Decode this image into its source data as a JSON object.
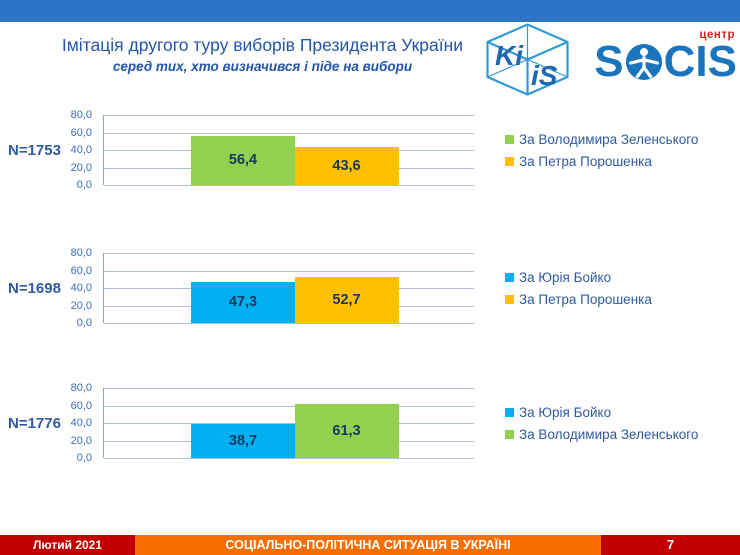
{
  "slide": {
    "title": "Імітація другого туру виборів Президента України",
    "subtitle": "серед тих, хто визначився і піде на вибори"
  },
  "logos": {
    "kiis": {
      "face_left": "Ki",
      "face_right": "iS"
    },
    "socis": {
      "prefix": "S",
      "suffix": "CIS",
      "tag": "центр"
    }
  },
  "colors": {
    "top_bar": "#2E73C5",
    "title_text": "#2356A8",
    "zelensky_green": "#92D050",
    "poroshenko_yellow": "#FFC000",
    "boyko_blue": "#00B0F0",
    "value_text": "#17375E",
    "label_text": "#2E5B9F",
    "gridline": "#AFBEDA",
    "footer_red": "#C00000",
    "footer_orange": "#FA6E00",
    "socis_blue": "#1B75BC",
    "centr_red": "#D92121"
  },
  "chart_data": [
    {
      "type": "bar",
      "n_label": "N=1753",
      "ylim": [
        0,
        80
      ],
      "yticks": [
        "80,0",
        "60,0",
        "40,0",
        "20,0",
        "0,0"
      ],
      "grid": true,
      "legend_position": "right",
      "series": [
        {
          "name": "За Володимира Зеленського",
          "value": 56.4,
          "label": "56,4",
          "color": "#92D050"
        },
        {
          "name": "За Петра Порошенка",
          "value": 43.6,
          "label": "43,6",
          "color": "#FFC000"
        }
      ]
    },
    {
      "type": "bar",
      "n_label": "N=1698",
      "ylim": [
        0,
        80
      ],
      "yticks": [
        "80,0",
        "60,0",
        "40,0",
        "20,0",
        "0,0"
      ],
      "grid": true,
      "legend_position": "right",
      "series": [
        {
          "name": "За Юрія Бойко",
          "value": 47.3,
          "label": "47,3",
          "color": "#00B0F0"
        },
        {
          "name": "За Петра Порошенка",
          "value": 52.7,
          "label": "52,7",
          "color": "#FFC000"
        }
      ]
    },
    {
      "type": "bar",
      "n_label": "N=1776",
      "ylim": [
        0,
        80
      ],
      "yticks": [
        "80,0",
        "60,0",
        "40,0",
        "20,0",
        "0,0"
      ],
      "grid": true,
      "legend_position": "right",
      "series": [
        {
          "name": "За Юрія Бойко",
          "value": 38.7,
          "label": "38,7",
          "color": "#00B0F0"
        },
        {
          "name": "За Володимира Зеленського",
          "value": 61.3,
          "label": "61,3",
          "color": "#92D050"
        }
      ]
    }
  ],
  "footer": {
    "date": "Лютий 2021",
    "title": "СОЦІАЛЬНО-ПОЛІТИЧНА СИТУАЦІЯ В УКРАЇНІ",
    "page": "7"
  }
}
